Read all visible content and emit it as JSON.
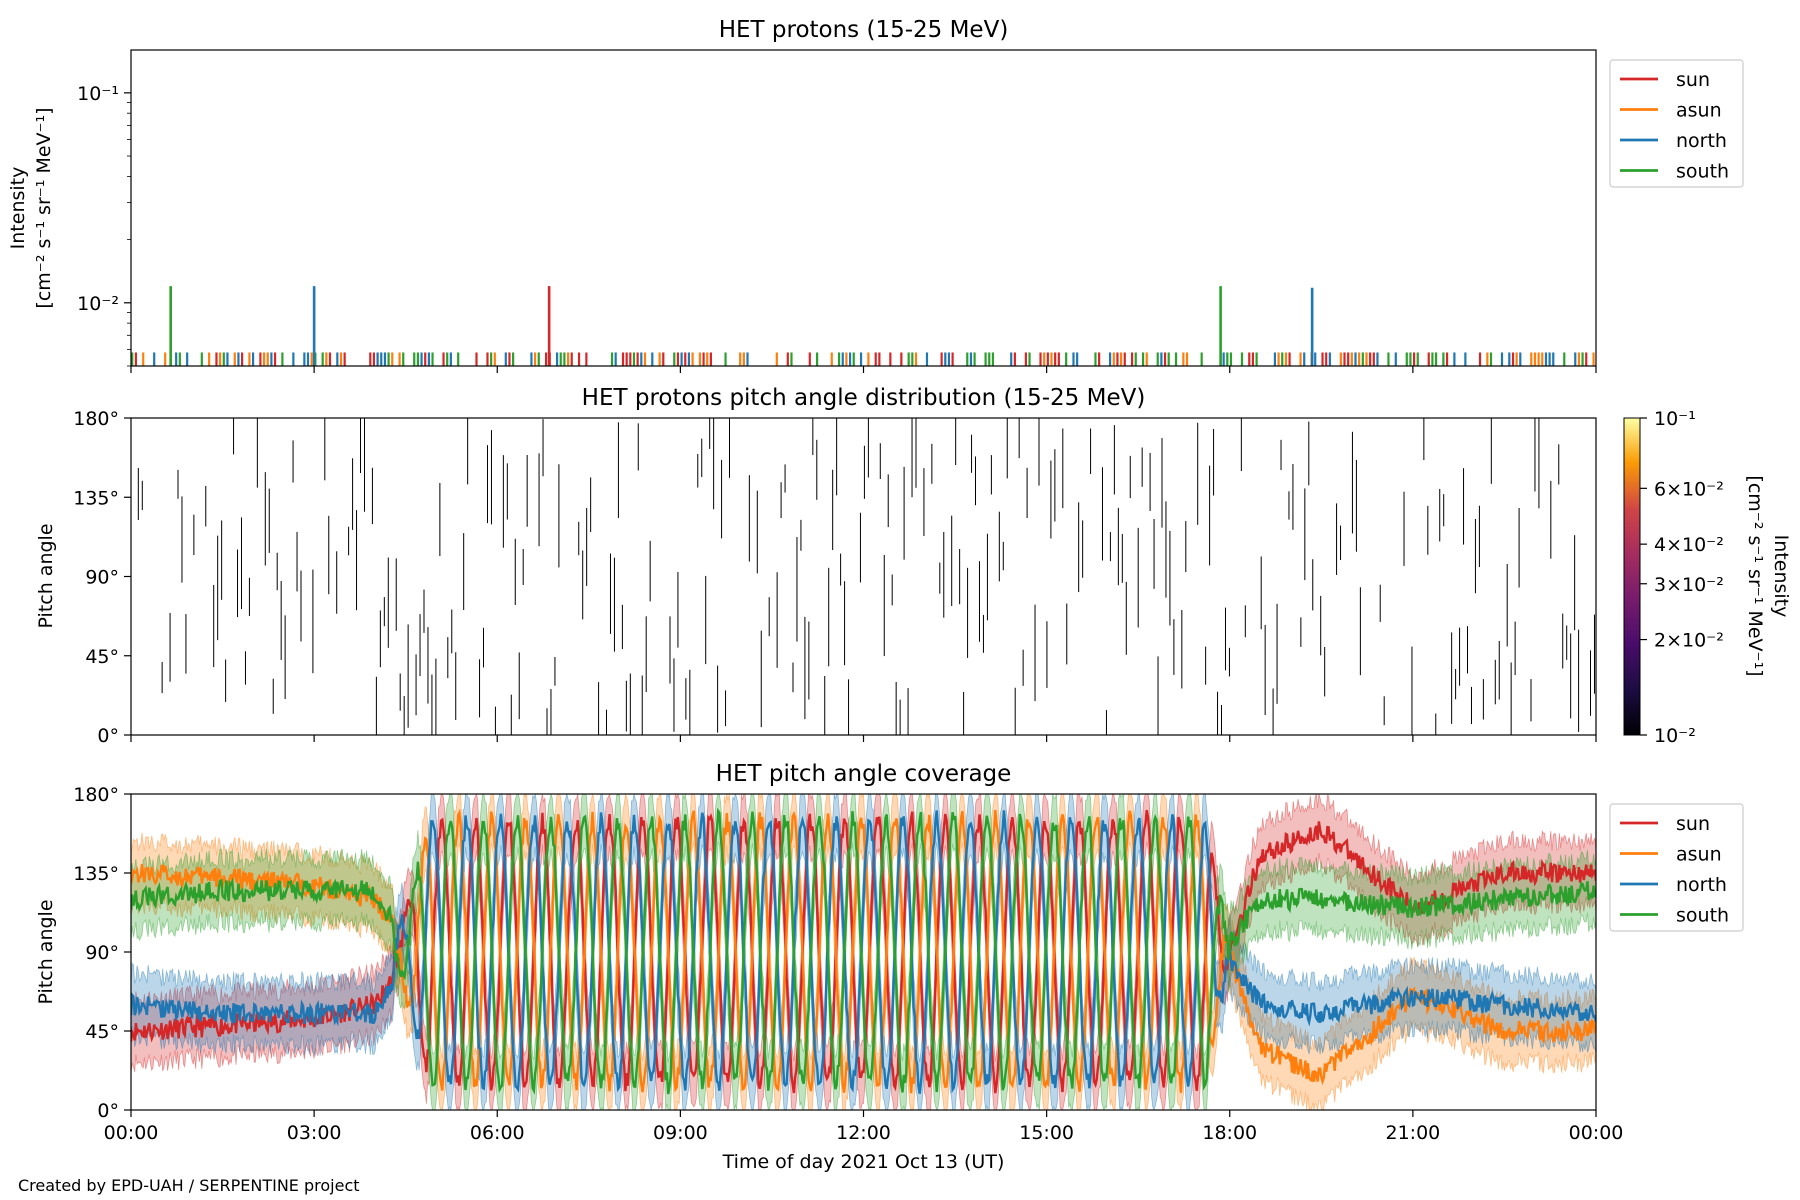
{
  "colors": {
    "sun": "#d62728",
    "asun": "#ff7f0e",
    "north": "#1f77b4",
    "south": "#2ca02c"
  },
  "chart_data": [
    {
      "type": "line",
      "title": "HET protons (15-25 MeV)",
      "ylabel_line1": "Intensity",
      "ylabel_line2": "[cm⁻² s⁻¹ sr⁻¹ MeV⁻¹]",
      "yscale": "log",
      "ylim": [
        0.005,
        0.16
      ],
      "ytick_labels": [
        "10⁻²",
        "10⁻¹"
      ],
      "ytick_values": [
        0.01,
        0.1
      ],
      "xlim_hours": [
        0,
        24
      ],
      "legend": {
        "placement": "right-top",
        "entries": [
          "sun",
          "asun",
          "north",
          "south"
        ]
      },
      "baseline_intensity": 0.0058,
      "series": [
        {
          "name": "sun",
          "spike_hours": [
            6.85
          ],
          "spike_values": [
            0.012
          ]
        },
        {
          "name": "asun",
          "spike_hours": [],
          "spike_values": []
        },
        {
          "name": "north",
          "spike_hours": [
            3.0,
            19.35
          ],
          "spike_values": [
            0.012,
            0.0118
          ]
        },
        {
          "name": "south",
          "spike_hours": [
            0.65,
            17.85
          ],
          "spike_values": [
            0.012,
            0.012
          ]
        }
      ]
    },
    {
      "type": "heatmap",
      "title": "HET protons pitch angle distribution (15-25 MeV)",
      "ylabel": "Pitch angle",
      "ylim": [
        0,
        180
      ],
      "ytick_labels": [
        "0°",
        "45°",
        "90°",
        "135°",
        "180°"
      ],
      "ytick_values": [
        0,
        45,
        90,
        135,
        180
      ],
      "xlim_hours": [
        0,
        24
      ],
      "colorbar": {
        "label_line1": "Intensity",
        "label_line2": "[cm⁻² s⁻¹ sr⁻¹ MeV⁻¹]",
        "scale": "log",
        "range": [
          0.01,
          0.1
        ],
        "tick_labels": [
          "10⁻²",
          "2×10⁻²",
          "3×10⁻²",
          "4×10⁻²",
          "6×10⁻²",
          "10⁻¹"
        ],
        "tick_values": [
          0.01,
          0.02,
          0.03,
          0.04,
          0.06,
          0.1
        ],
        "colormap": "inferno"
      }
    },
    {
      "type": "line",
      "title": "HET pitch angle coverage",
      "ylabel": "Pitch angle",
      "ylim": [
        0,
        180
      ],
      "ytick_labels": [
        "0°",
        "45°",
        "90°",
        "135°",
        "180°"
      ],
      "ytick_values": [
        0,
        45,
        90,
        135,
        180
      ],
      "xlabel": "Time of day 2021 Oct 13 (UT)",
      "xtick_labels": [
        "00:00",
        "03:00",
        "06:00",
        "09:00",
        "12:00",
        "15:00",
        "18:00",
        "21:00",
        "00:00"
      ],
      "xtick_hours": [
        0,
        3,
        6,
        9,
        12,
        15,
        18,
        21,
        24
      ],
      "xlim_hours": [
        0,
        24
      ],
      "legend": {
        "placement": "right-top",
        "entries": [
          "sun",
          "asun",
          "north",
          "south"
        ]
      },
      "band_halfwidth_deg": 18,
      "series": [
        {
          "name": "sun",
          "t_hours": [
            0,
            1.5,
            3,
            4,
            4.5,
            18,
            18.5,
            19.5,
            21,
            22.5,
            24
          ],
          "mean_deg": [
            45,
            48,
            52,
            60,
            85,
            90,
            145,
            160,
            115,
            135,
            135
          ]
        },
        {
          "name": "asun",
          "t_hours": [
            0,
            1.5,
            3,
            4,
            4.5,
            18,
            18.5,
            19.5,
            21,
            22.5,
            24
          ],
          "mean_deg": [
            135,
            132,
            128,
            120,
            95,
            90,
            35,
            20,
            65,
            45,
            45
          ]
        },
        {
          "name": "north",
          "t_hours": [
            0,
            1.5,
            3,
            4,
            4.5,
            18,
            18.5,
            19.5,
            21,
            22.5,
            24
          ],
          "mean_deg": [
            60,
            55,
            55,
            55,
            85,
            85,
            60,
            55,
            65,
            60,
            55
          ]
        },
        {
          "name": "south",
          "t_hours": [
            0,
            1.5,
            3,
            4,
            4.5,
            18,
            18.5,
            19.5,
            21,
            22.5,
            24
          ],
          "mean_deg": [
            120,
            125,
            125,
            125,
            95,
            95,
            120,
            120,
            115,
            120,
            125
          ]
        }
      ],
      "oscillation": {
        "start_hour": 4.3,
        "end_hour": 18.0,
        "period_hours": 0.55,
        "amplitude_deg": 75
      }
    }
  ],
  "footer": {
    "credit": "Created by EPD-UAH / SERPENTINE project"
  }
}
